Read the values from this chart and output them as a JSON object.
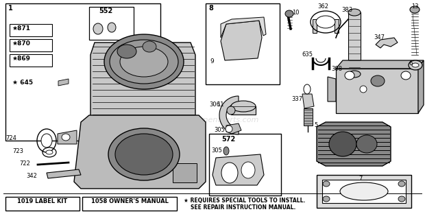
{
  "bg_color": "#ffffff",
  "watermark": "eReplacementParts.com",
  "bottom_left_box1": "1019 LABEL KIT",
  "bottom_left_box2": "1058 OWNER'S MANUAL",
  "figsize": [
    6.2,
    3.12
  ],
  "dpi": 100
}
